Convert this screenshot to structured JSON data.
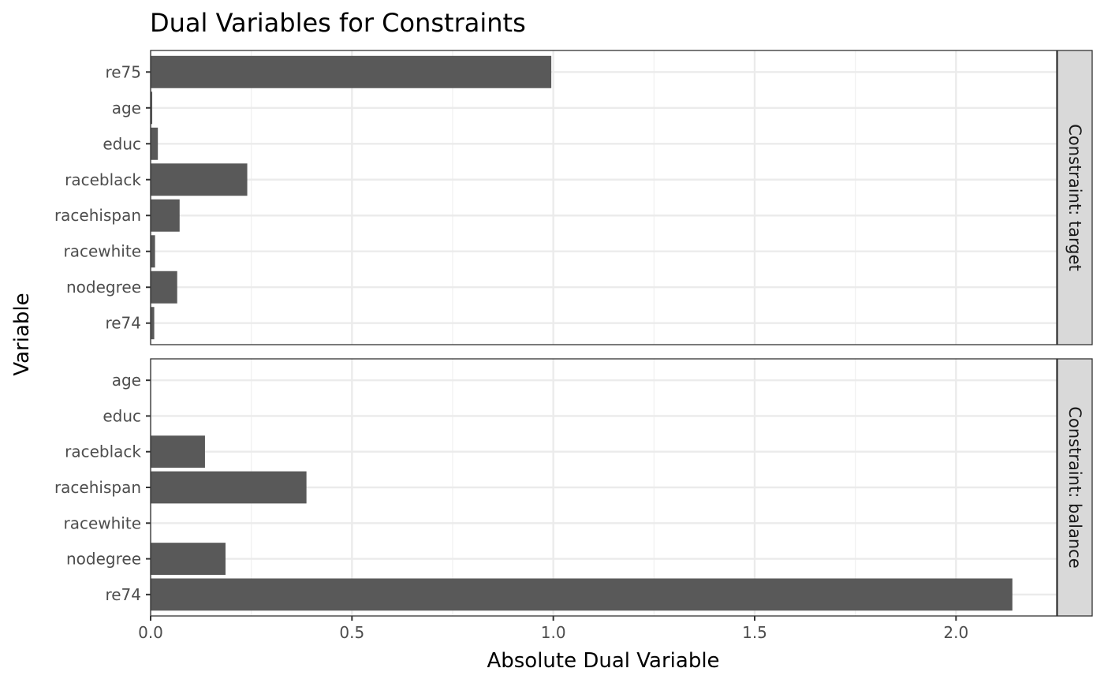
{
  "chart_data": {
    "type": "bar",
    "orientation": "horizontal",
    "title": "Dual Variables for Constraints",
    "xlabel": "Absolute Dual Variable",
    "ylabel": "Variable",
    "xlim": [
      0,
      2.25
    ],
    "x_ticks": [
      0,
      0.5,
      1.0,
      1.5,
      2.0
    ],
    "x_tick_labels": [
      "0.0",
      "0.5",
      "1.0",
      "1.5",
      "2.0"
    ],
    "bar_color": "#595959",
    "grid": true,
    "facets": [
      {
        "strip_label": "Constraint: target",
        "categories": [
          "re75",
          "age",
          "educ",
          "raceblack",
          "racehispan",
          "racewhite",
          "nodegree",
          "re74"
        ],
        "values": [
          0.995,
          0.004,
          0.018,
          0.24,
          0.072,
          0.011,
          0.066,
          0.009
        ]
      },
      {
        "strip_label": "Constraint: balance",
        "categories": [
          "age",
          "educ",
          "raceblack",
          "racehispan",
          "racewhite",
          "nodegree",
          "re74"
        ],
        "values": [
          0.0,
          0.0,
          0.135,
          0.387,
          0.0,
          0.186,
          2.14
        ]
      }
    ]
  }
}
